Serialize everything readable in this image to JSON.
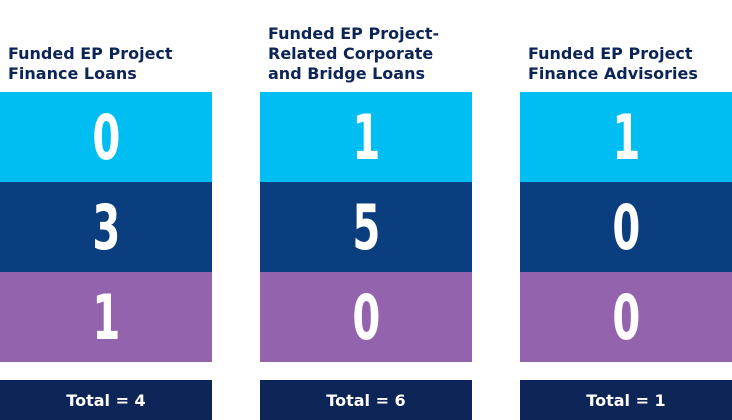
{
  "columns": [
    {
      "title_lines": [
        "Funded EP Project",
        "Finance Loans"
      ],
      "values": [
        0,
        3,
        1
      ],
      "total": "Total = 4"
    },
    {
      "title_lines": [
        "Funded EP Project-",
        "Related Corporate",
        "and Bridge Loans"
      ],
      "values": [
        1,
        5,
        0
      ],
      "total": "Total = 6"
    },
    {
      "title_lines": [
        "Funded EP Project",
        "Finance Advisories"
      ],
      "values": [
        1,
        0,
        0
      ],
      "total": "Total = 1"
    }
  ]
}
